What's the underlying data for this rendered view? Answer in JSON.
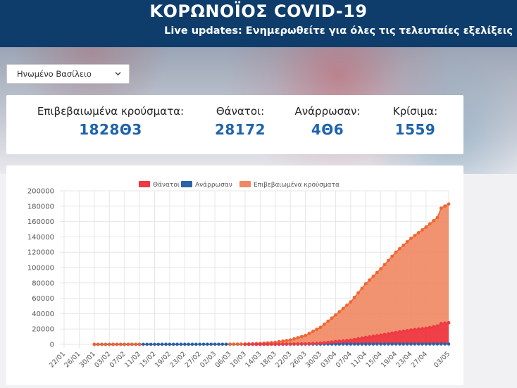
{
  "header": {
    "title": "ΚΟΡΩΝΟΪΟΣ COVID-19",
    "subtitle": "Live updates: Ενημερωθείτε για όλες τις τελευταίες εξελίξεις"
  },
  "country_select": {
    "selected": "Ηνωμένο Βασίλειο"
  },
  "stats": [
    {
      "label": "Επιβεβαιωμένα κρούσματα:",
      "value": "1828Θ3"
    },
    {
      "label": "Θάνατοι:",
      "value": "28172"
    },
    {
      "label": "Ανάρρωσαν:",
      "value": "4Θ6"
    },
    {
      "label": "Κρίσιμα:",
      "value": "1559"
    }
  ],
  "colors": {
    "deaths": "#ee3a44",
    "recovered": "#2a62aa",
    "confirmed": "#ef8760",
    "confirmed_dot": "#ef6633",
    "header_bg": "#0e3d6c",
    "value_blue": "#1f63ad"
  },
  "chart_data": {
    "type": "area",
    "title": "",
    "xlabel": "",
    "ylabel": "",
    "ylim": [
      0,
      200000
    ],
    "yticks": [
      0,
      20000,
      40000,
      60000,
      80000,
      100000,
      120000,
      140000,
      160000,
      180000,
      200000
    ],
    "x_tick_labels": [
      "22/01",
      "26/01",
      "30/01",
      "03/02",
      "07/02",
      "11/02",
      "15/02",
      "19/02",
      "23/02",
      "27/02",
      "02/03",
      "06/03",
      "10/03",
      "14/03",
      "18/03",
      "22/03",
      "26/03",
      "30/03",
      "03/04",
      "07/04",
      "11/04",
      "15/04",
      "19/04",
      "23/04",
      "27/04",
      "03/05"
    ],
    "x_start": "22/01",
    "x_end": "03/05",
    "legend_position": "top-center",
    "series": [
      {
        "name": "Θάνατοι",
        "color_key": "deaths",
        "points": [
          [
            "22/01",
            0
          ],
          [
            "04/03",
            0
          ],
          [
            "10/03",
            10
          ],
          [
            "14/03",
            30
          ],
          [
            "18/03",
            100
          ],
          [
            "22/03",
            300
          ],
          [
            "26/03",
            600
          ],
          [
            "30/03",
            1500
          ],
          [
            "03/04",
            3600
          ],
          [
            "07/04",
            5400
          ],
          [
            "11/04",
            9000
          ],
          [
            "15/04",
            12000
          ],
          [
            "19/04",
            15500
          ],
          [
            "23/04",
            18700
          ],
          [
            "27/04",
            21000
          ],
          [
            "30/04",
            24000
          ],
          [
            "01/05",
            27000
          ],
          [
            "03/05",
            28172
          ]
        ]
      },
      {
        "name": "Ανάρρωσαν",
        "color_key": "recovered",
        "points": [
          [
            "22/01",
            0
          ],
          [
            "03/05",
            496
          ]
        ]
      },
      {
        "name": "Επιβεβαιωμένα κρούσματα",
        "color_key": "confirmed",
        "points": [
          [
            "22/01",
            0
          ],
          [
            "31/01",
            2
          ],
          [
            "11/02",
            8
          ],
          [
            "23/02",
            13
          ],
          [
            "02/03",
            40
          ],
          [
            "06/03",
            160
          ],
          [
            "10/03",
            380
          ],
          [
            "14/03",
            1100
          ],
          [
            "18/03",
            2600
          ],
          [
            "22/03",
            5700
          ],
          [
            "26/03",
            11600
          ],
          [
            "30/03",
            22100
          ],
          [
            "03/04",
            38200
          ],
          [
            "07/04",
            55200
          ],
          [
            "11/04",
            78900
          ],
          [
            "15/04",
            98500
          ],
          [
            "19/04",
            120100
          ],
          [
            "23/04",
            138100
          ],
          [
            "27/04",
            152800
          ],
          [
            "30/04",
            165200
          ],
          [
            "01/05",
            177400
          ],
          [
            "03/05",
            182803
          ]
        ]
      }
    ]
  }
}
